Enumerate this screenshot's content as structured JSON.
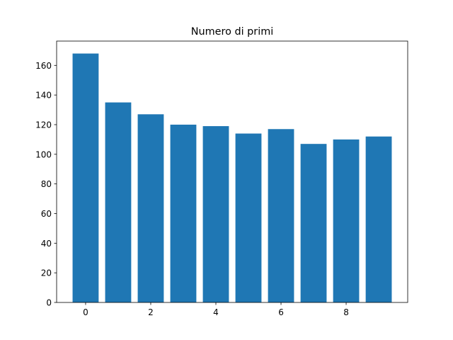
{
  "chart_data": {
    "type": "bar",
    "title": "Numero di primi",
    "x": [
      0,
      1,
      2,
      3,
      4,
      5,
      6,
      7,
      8,
      9
    ],
    "values": [
      168,
      135,
      127,
      120,
      119,
      114,
      117,
      107,
      110,
      112
    ],
    "color": "#1f77b4",
    "xlim": [
      -0.89,
      9.89
    ],
    "xticks": [
      0,
      2,
      4,
      6,
      8
    ],
    "ylim": [
      0,
      176.4
    ],
    "yticks": [
      0,
      20,
      40,
      60,
      80,
      100,
      120,
      140,
      160
    ],
    "grid": false
  }
}
